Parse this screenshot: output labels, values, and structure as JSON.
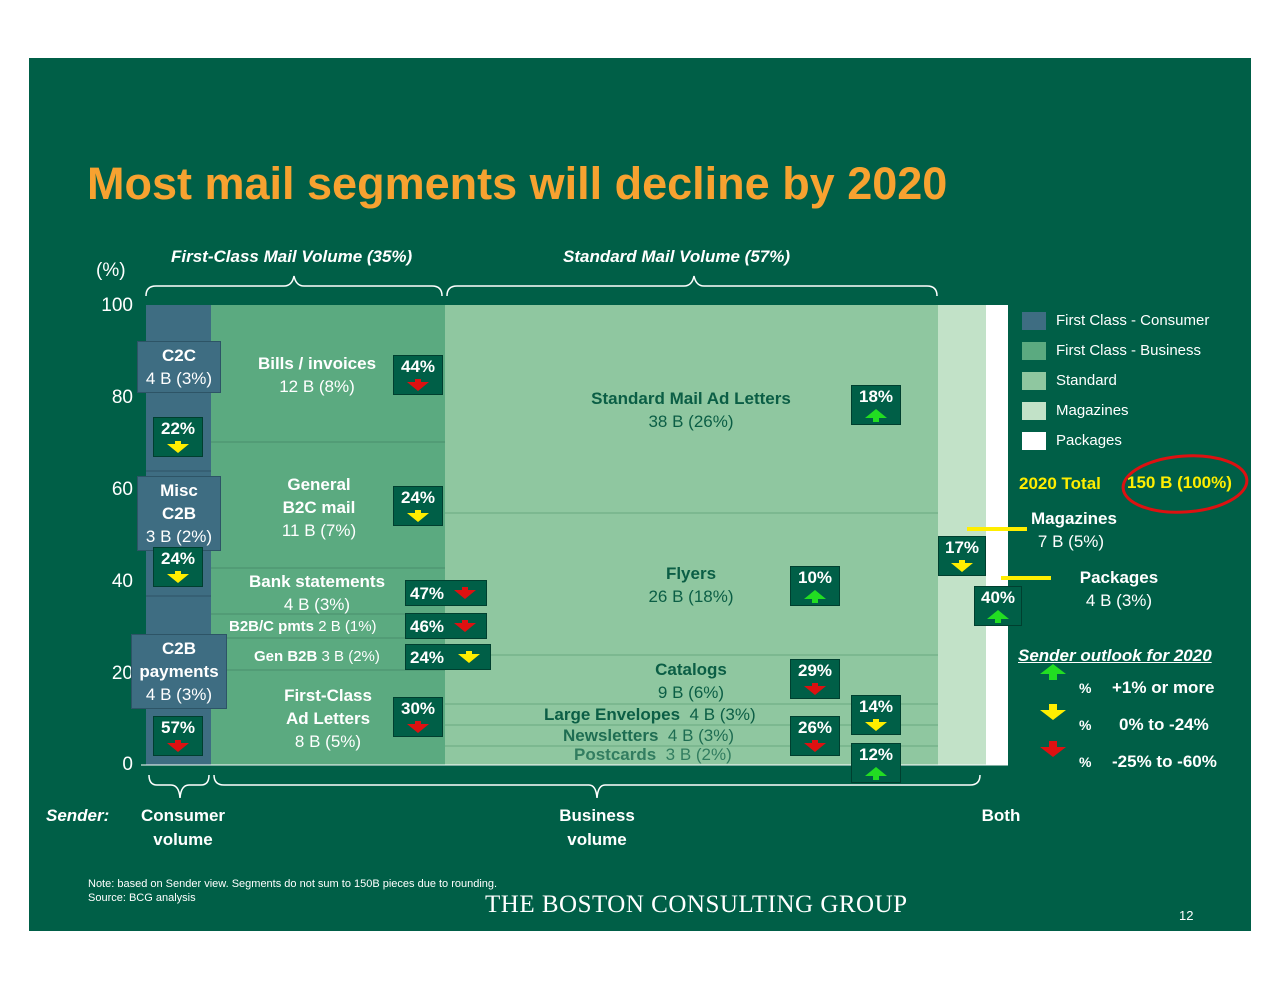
{
  "title": "Most mail segments will decline by 2020",
  "y_unit": "(%)",
  "y_ticks": [
    "100",
    "80",
    "60",
    "40",
    "20",
    "0"
  ],
  "brace_labels": {
    "first_class": "First-Class Mail Volume (35%)",
    "standard": "Standard Mail Volume (57%)"
  },
  "segments": {
    "c2c": {
      "name": "C2C",
      "vol": "4 B (3%)",
      "pct": "22%"
    },
    "misc_c2b": {
      "name1": "Misc",
      "name2": "C2B",
      "vol": "3 B (2%)",
      "pct": "24%"
    },
    "c2b_pay": {
      "name1": "C2B",
      "name2": "payments",
      "vol": "4 B (3%)",
      "pct": "57%"
    },
    "bills": {
      "name": "Bills / invoices",
      "vol": "12 B (8%)",
      "pct": "44%"
    },
    "b2c": {
      "name1": "General",
      "name2": "B2C mail",
      "vol": "11 B (7%)",
      "pct": "24%"
    },
    "bank": {
      "name": "Bank statements",
      "vol": "4 B (3%)",
      "pct": "47%"
    },
    "b2bc": {
      "name": "B2B/C pmts",
      "vol": "2 B (1%)",
      "pct": "46%"
    },
    "genb2b": {
      "name": "Gen B2B",
      "vol": "3 B (2%)",
      "pct": "24%"
    },
    "fcad": {
      "name1": "First-Class",
      "name2": "Ad Letters",
      "vol": "8 B (5%)",
      "pct": "30%"
    },
    "stdad": {
      "name": "Standard Mail Ad Letters",
      "vol": "38 B (26%)",
      "pct": "18%"
    },
    "flyers": {
      "name": "Flyers",
      "vol": "26 B (18%)",
      "pct": "10%"
    },
    "catalogs": {
      "name": "Catalogs",
      "vol": "9 B (6%)",
      "pct": "29%"
    },
    "largeenv": {
      "name": "Large Envelopes",
      "vol": "4 B (3%)",
      "pct": "14%"
    },
    "newsletters": {
      "name": "Newsletters",
      "vol": "4 B (3%)",
      "pct": "26%"
    },
    "postcards": {
      "name": "Postcards",
      "vol": "3 B (2%)",
      "pct": "12%"
    },
    "magazines": {
      "name": "Magazines",
      "vol": "7 B (5%)",
      "pct": "17%"
    },
    "packages": {
      "name": "Packages",
      "vol": "4 B (3%)",
      "pct": "40%"
    }
  },
  "legend": [
    {
      "label": "First Class - Consumer",
      "color": "#3E6D82"
    },
    {
      "label": "First Class - Business",
      "color": "#5BAA80"
    },
    {
      "label": "Standard",
      "color": "#8FC7A0"
    },
    {
      "label": "Magazines",
      "color": "#C2E2C8"
    },
    {
      "label": "Packages",
      "color": "#FFFFFF"
    }
  ],
  "total": {
    "label": "2020 Total",
    "value": "150 B (100%)"
  },
  "outlook": {
    "title": "Sender outlook for 2020",
    "symbol": "%",
    "items": [
      {
        "label": "+1% or more",
        "color": "#22DD22",
        "dir": "up"
      },
      {
        "label": "0% to -24%",
        "color": "#FFEE00",
        "dir": "down"
      },
      {
        "label": "-25% to -60%",
        "color": "#DD1111",
        "dir": "down"
      }
    ]
  },
  "bottom": {
    "sender": "Sender:",
    "consumer1": "Consumer",
    "consumer2": "volume",
    "business1": "Business",
    "business2": "volume",
    "both": "Both"
  },
  "note1": "Note:  based on Sender view.  Segments do not sum to 150B pieces due to rounding.",
  "note2": "Source: BCG analysis",
  "logo": "THE BOSTON CONSULTING GROUP",
  "page_number": "12",
  "colors": {
    "background": "#005F47",
    "title": "#F7A230",
    "consumer": "#3E6D82",
    "business": "#5BAA80",
    "standard": "#8FC7A0",
    "magazines": "#C2E2C8",
    "packages": "#FFFFFF",
    "total_highlight": "#FFEE00",
    "circle": "#DD1111"
  },
  "chart_data": {
    "type": "marimekko",
    "ylim": [
      0,
      100
    ],
    "columns": [
      {
        "category": "First Class - Consumer",
        "segments": [
          {
            "name": "C2C",
            "volume_b": 4,
            "share_pct": 3,
            "outlook_pct": -22
          },
          {
            "name": "Misc C2B",
            "volume_b": 3,
            "share_pct": 2,
            "outlook_pct": -24
          },
          {
            "name": "C2B payments",
            "volume_b": 4,
            "share_pct": 3,
            "outlook_pct": -57
          }
        ]
      },
      {
        "category": "First Class - Business",
        "segments": [
          {
            "name": "Bills / invoices",
            "volume_b": 12,
            "share_pct": 8,
            "outlook_pct": -44
          },
          {
            "name": "General B2C mail",
            "volume_b": 11,
            "share_pct": 7,
            "outlook_pct": -24
          },
          {
            "name": "Bank statements",
            "volume_b": 4,
            "share_pct": 3,
            "outlook_pct": -47
          },
          {
            "name": "B2B/C pmts",
            "volume_b": 2,
            "share_pct": 1,
            "outlook_pct": -46
          },
          {
            "name": "Gen B2B",
            "volume_b": 3,
            "share_pct": 2,
            "outlook_pct": -24
          },
          {
            "name": "First-Class Ad Letters",
            "volume_b": 8,
            "share_pct": 5,
            "outlook_pct": -30
          }
        ]
      },
      {
        "category": "Standard",
        "segments": [
          {
            "name": "Standard Mail Ad Letters",
            "volume_b": 38,
            "share_pct": 26,
            "outlook_pct": 18
          },
          {
            "name": "Flyers",
            "volume_b": 26,
            "share_pct": 18,
            "outlook_pct": 10
          },
          {
            "name": "Catalogs",
            "volume_b": 9,
            "share_pct": 6,
            "outlook_pct": -29
          },
          {
            "name": "Large Envelopes",
            "volume_b": 4,
            "share_pct": 3,
            "outlook_pct": -14
          },
          {
            "name": "Newsletters",
            "volume_b": 4,
            "share_pct": 3,
            "outlook_pct": -26
          },
          {
            "name": "Postcards",
            "volume_b": 3,
            "share_pct": 2,
            "outlook_pct": 12
          }
        ]
      },
      {
        "category": "Magazines",
        "segments": [
          {
            "name": "Magazines",
            "volume_b": 7,
            "share_pct": 5,
            "outlook_pct": -17
          }
        ]
      },
      {
        "category": "Packages",
        "segments": [
          {
            "name": "Packages",
            "volume_b": 4,
            "share_pct": 3,
            "outlook_pct": 40
          }
        ]
      }
    ],
    "total": "150 B (100%)"
  }
}
